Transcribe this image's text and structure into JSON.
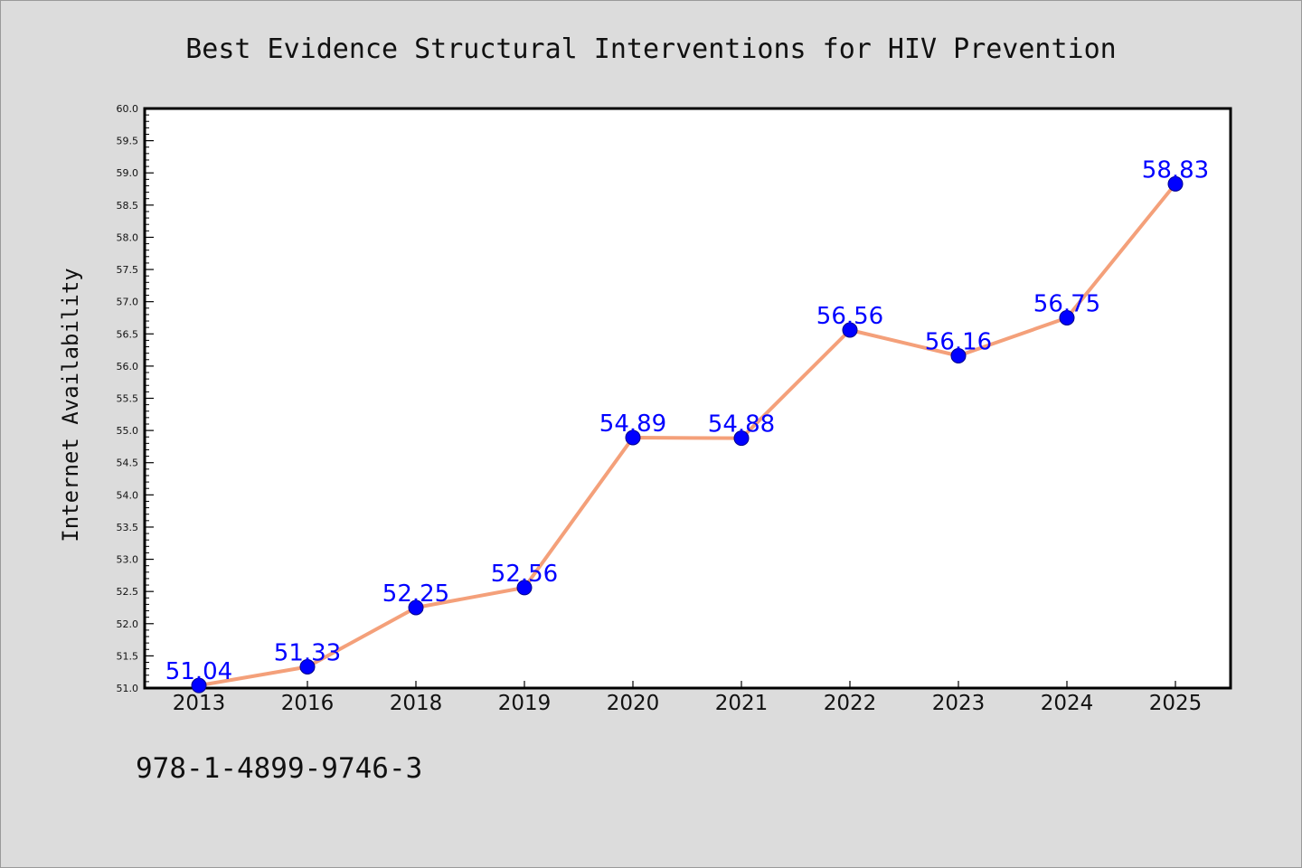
{
  "chart_data": {
    "type": "line",
    "title": "Best Evidence Structural Interventions for HIV Prevention",
    "ylabel": "Internet Availability",
    "xlabel": "",
    "categories": [
      "2013",
      "2016",
      "2018",
      "2019",
      "2020",
      "2021",
      "2022",
      "2023",
      "2024",
      "2025"
    ],
    "values": [
      51.04,
      51.33,
      52.25,
      52.56,
      54.89,
      54.88,
      56.56,
      56.16,
      56.75,
      58.83
    ],
    "data_labels": [
      "51.04",
      "51.33",
      "52.25",
      "52.56",
      "54.89",
      "54.88",
      "56.56",
      "56.16",
      "56.75",
      "58.83"
    ],
    "ylim": [
      51.0,
      60.0
    ],
    "y_ticks": [
      "51.0",
      "51.5",
      "52.0",
      "52.5",
      "53.0",
      "53.5",
      "54.0",
      "54.5",
      "55.0",
      "55.5",
      "56.0",
      "56.5",
      "57.0",
      "57.5",
      "58.0",
      "58.5",
      "59.0",
      "59.5",
      "60.0"
    ],
    "grid": false,
    "line_color": "#f4a07a",
    "marker_color": "#0000ff",
    "label_color": "#0000ff"
  },
  "footer": {
    "code": "978-1-4899-9746-3"
  }
}
